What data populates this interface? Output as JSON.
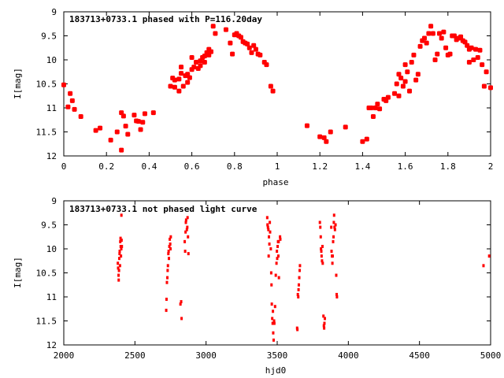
{
  "chart_data": [
    {
      "type": "scatter",
      "title": "183713+0733.1 phased with P=116.20day",
      "xlabel": "phase",
      "ylabel": "I[mag]",
      "xlim": [
        0,
        2
      ],
      "ylim": [
        9,
        12
      ],
      "y_inverted": true,
      "x_ticks": [
        0,
        0.2,
        0.4,
        0.6,
        0.8,
        1,
        1.2,
        1.4,
        1.6,
        1.8,
        2
      ],
      "x_tick_labels": [
        "0",
        "0.2",
        "0.4",
        "0.6",
        "0.8",
        "1",
        "1.2",
        "1.4",
        "1.6",
        "1.8",
        "2"
      ],
      "y_ticks": [
        9,
        9.5,
        10,
        10.5,
        11,
        11.5,
        12
      ],
      "y_tick_labels": [
        "9",
        "9.5",
        "10",
        "10.5",
        "11",
        "11.5",
        "12"
      ],
      "marker_color": "#ff0000",
      "marker_style": "large-dot",
      "points": [
        [
          0.0,
          10.52
        ],
        [
          0.02,
          10.98
        ],
        [
          0.03,
          10.7
        ],
        [
          0.04,
          10.85
        ],
        [
          0.05,
          11.03
        ],
        [
          0.08,
          11.18
        ],
        [
          0.15,
          11.47
        ],
        [
          0.17,
          11.42
        ],
        [
          0.22,
          11.67
        ],
        [
          0.25,
          11.5
        ],
        [
          0.27,
          11.88
        ],
        [
          0.27,
          11.1
        ],
        [
          0.28,
          11.17
        ],
        [
          0.29,
          11.38
        ],
        [
          0.3,
          11.55
        ],
        [
          0.33,
          11.15
        ],
        [
          0.34,
          11.27
        ],
        [
          0.35,
          11.28
        ],
        [
          0.36,
          11.45
        ],
        [
          0.37,
          11.3
        ],
        [
          0.38,
          11.12
        ],
        [
          0.42,
          11.1
        ],
        [
          0.5,
          10.55
        ],
        [
          0.51,
          10.38
        ],
        [
          0.52,
          10.42
        ],
        [
          0.52,
          10.57
        ],
        [
          0.54,
          10.4
        ],
        [
          0.54,
          10.65
        ],
        [
          0.55,
          10.28
        ],
        [
          0.55,
          10.15
        ],
        [
          0.56,
          10.55
        ],
        [
          0.57,
          10.33
        ],
        [
          0.58,
          10.3
        ],
        [
          0.58,
          10.47
        ],
        [
          0.59,
          10.37
        ],
        [
          0.6,
          9.95
        ],
        [
          0.6,
          10.2
        ],
        [
          0.61,
          10.15
        ],
        [
          0.62,
          10.05
        ],
        [
          0.63,
          10.18
        ],
        [
          0.64,
          10.02
        ],
        [
          0.64,
          10.12
        ],
        [
          0.65,
          9.95
        ],
        [
          0.66,
          10.05
        ],
        [
          0.66,
          9.92
        ],
        [
          0.67,
          9.85
        ],
        [
          0.68,
          9.9
        ],
        [
          0.68,
          9.78
        ],
        [
          0.69,
          9.83
        ],
        [
          0.7,
          9.3
        ],
        [
          0.71,
          9.45
        ],
        [
          0.76,
          9.37
        ],
        [
          0.78,
          9.65
        ],
        [
          0.79,
          9.88
        ],
        [
          0.8,
          9.48
        ],
        [
          0.81,
          9.45
        ],
        [
          0.82,
          9.5
        ],
        [
          0.83,
          9.53
        ],
        [
          0.84,
          9.62
        ],
        [
          0.85,
          9.65
        ],
        [
          0.86,
          9.67
        ],
        [
          0.87,
          9.75
        ],
        [
          0.88,
          9.85
        ],
        [
          0.89,
          9.7
        ],
        [
          0.9,
          9.78
        ],
        [
          0.91,
          9.88
        ],
        [
          0.92,
          9.9
        ],
        [
          0.94,
          10.05
        ],
        [
          0.95,
          10.1
        ],
        [
          0.97,
          10.55
        ],
        [
          0.98,
          10.65
        ],
        [
          1.14,
          11.37
        ],
        [
          1.2,
          11.6
        ],
        [
          1.22,
          11.62
        ],
        [
          1.23,
          11.7
        ],
        [
          1.25,
          11.5
        ],
        [
          1.32,
          11.4
        ],
        [
          1.4,
          11.7
        ],
        [
          1.42,
          11.65
        ],
        [
          1.43,
          11.0
        ],
        [
          1.44,
          11.0
        ],
        [
          1.45,
          11.18
        ],
        [
          1.46,
          11.0
        ],
        [
          1.47,
          10.92
        ],
        [
          1.48,
          11.02
        ],
        [
          1.5,
          10.82
        ],
        [
          1.51,
          10.85
        ],
        [
          1.52,
          10.78
        ],
        [
          1.55,
          10.7
        ],
        [
          1.56,
          10.5
        ],
        [
          1.57,
          10.75
        ],
        [
          1.57,
          10.3
        ],
        [
          1.58,
          10.38
        ],
        [
          1.59,
          10.55
        ],
        [
          1.6,
          10.45
        ],
        [
          1.6,
          10.1
        ],
        [
          1.61,
          10.25
        ],
        [
          1.62,
          10.65
        ],
        [
          1.63,
          10.05
        ],
        [
          1.64,
          9.9
        ],
        [
          1.65,
          10.42
        ],
        [
          1.66,
          10.3
        ],
        [
          1.67,
          9.72
        ],
        [
          1.68,
          9.6
        ],
        [
          1.69,
          9.55
        ],
        [
          1.7,
          9.65
        ],
        [
          1.71,
          9.45
        ],
        [
          1.72,
          9.3
        ],
        [
          1.73,
          9.45
        ],
        [
          1.74,
          10.0
        ],
        [
          1.75,
          9.88
        ],
        [
          1.76,
          9.45
        ],
        [
          1.77,
          9.55
        ],
        [
          1.78,
          9.42
        ],
        [
          1.79,
          9.75
        ],
        [
          1.8,
          9.9
        ],
        [
          1.81,
          9.88
        ],
        [
          1.82,
          9.5
        ],
        [
          1.83,
          9.5
        ],
        [
          1.84,
          9.58
        ],
        [
          1.85,
          9.55
        ],
        [
          1.86,
          9.52
        ],
        [
          1.87,
          9.6
        ],
        [
          1.88,
          9.63
        ],
        [
          1.89,
          9.7
        ],
        [
          1.9,
          9.78
        ],
        [
          1.9,
          10.05
        ],
        [
          1.91,
          9.75
        ],
        [
          1.92,
          10.0
        ],
        [
          1.93,
          9.78
        ],
        [
          1.94,
          9.95
        ],
        [
          1.95,
          9.8
        ],
        [
          1.96,
          10.1
        ],
        [
          1.97,
          10.55
        ],
        [
          1.98,
          10.25
        ],
        [
          2.0,
          10.58
        ]
      ]
    },
    {
      "type": "scatter",
      "title": "183713+0733.1 not phased light curve",
      "xlabel": "hjd0",
      "ylabel": "I[mag]",
      "xlim": [
        2000,
        5000
      ],
      "ylim": [
        9,
        12
      ],
      "y_inverted": true,
      "x_ticks": [
        2000,
        2500,
        3000,
        3500,
        4000,
        4500,
        5000
      ],
      "x_tick_labels": [
        "2000",
        "2500",
        "3000",
        "3500",
        "4000",
        "4500",
        "5000"
      ],
      "y_ticks": [
        9,
        9.5,
        10,
        10.5,
        11,
        11.5,
        12
      ],
      "y_tick_labels": [
        "9",
        "9.5",
        "10",
        "10.5",
        "11",
        "11.5",
        "12"
      ],
      "marker_color": "#ff0000",
      "marker_style": "small-dot",
      "points": [
        [
          2380,
          10.3
        ],
        [
          2382,
          10.4
        ],
        [
          2385,
          10.55
        ],
        [
          2386,
          10.65
        ],
        [
          2388,
          10.45
        ],
        [
          2390,
          10.2
        ],
        [
          2392,
          10.1
        ],
        [
          2393,
          10.05
        ],
        [
          2395,
          10.35
        ],
        [
          2397,
          9.85
        ],
        [
          2399,
          9.78
        ],
        [
          2400,
          9.95
        ],
        [
          2402,
          10.15
        ],
        [
          2404,
          10.0
        ],
        [
          2405,
          9.3
        ],
        [
          2406,
          9.82
        ],
        [
          2408,
          9.95
        ],
        [
          2720,
          11.28
        ],
        [
          2722,
          11.05
        ],
        [
          2725,
          10.7
        ],
        [
          2728,
          10.6
        ],
        [
          2730,
          10.45
        ],
        [
          2732,
          10.35
        ],
        [
          2735,
          10.1
        ],
        [
          2737,
          10.05
        ],
        [
          2739,
          10.2
        ],
        [
          2742,
          9.95
        ],
        [
          2745,
          9.8
        ],
        [
          2748,
          9.9
        ],
        [
          2750,
          10.0
        ],
        [
          2752,
          9.75
        ],
        [
          2820,
          11.15
        ],
        [
          2825,
          11.1
        ],
        [
          2828,
          11.45
        ],
        [
          2850,
          9.85
        ],
        [
          2853,
          10.05
        ],
        [
          2856,
          9.65
        ],
        [
          2858,
          9.45
        ],
        [
          2860,
          9.4
        ],
        [
          2865,
          9.6
        ],
        [
          2868,
          9.55
        ],
        [
          2870,
          9.35
        ],
        [
          2873,
          9.75
        ],
        [
          2876,
          10.1
        ],
        [
          3430,
          9.35
        ],
        [
          3432,
          9.5
        ],
        [
          3435,
          9.55
        ],
        [
          3438,
          9.6
        ],
        [
          3440,
          10.15
        ],
        [
          3442,
          9.75
        ],
        [
          3445,
          9.9
        ],
        [
          3448,
          9.45
        ],
        [
          3450,
          9.65
        ],
        [
          3455,
          10.0
        ],
        [
          3458,
          10.5
        ],
        [
          3460,
          10.75
        ],
        [
          3462,
          11.15
        ],
        [
          3465,
          11.45
        ],
        [
          3468,
          11.55
        ],
        [
          3470,
          11.3
        ],
        [
          3472,
          11.75
        ],
        [
          3475,
          11.9
        ],
        [
          3478,
          11.5
        ],
        [
          3480,
          11.55
        ],
        [
          3485,
          11.2
        ],
        [
          3490,
          10.55
        ],
        [
          3495,
          10.3
        ],
        [
          3498,
          10.05
        ],
        [
          3500,
          10.2
        ],
        [
          3503,
          9.95
        ],
        [
          3506,
          9.85
        ],
        [
          3508,
          10.15
        ],
        [
          3510,
          9.85
        ],
        [
          3512,
          10.6
        ],
        [
          3520,
          9.75
        ],
        [
          3522,
          9.8
        ],
        [
          3640,
          11.65
        ],
        [
          3642,
          11.68
        ],
        [
          3645,
          10.95
        ],
        [
          3648,
          11.0
        ],
        [
          3650,
          10.85
        ],
        [
          3652,
          10.75
        ],
        [
          3655,
          10.6
        ],
        [
          3658,
          10.45
        ],
        [
          3660,
          10.35
        ],
        [
          3800,
          9.45
        ],
        [
          3803,
          9.55
        ],
        [
          3806,
          9.75
        ],
        [
          3808,
          10.0
        ],
        [
          3810,
          10.05
        ],
        [
          3812,
          10.15
        ],
        [
          3815,
          10.25
        ],
        [
          3818,
          9.95
        ],
        [
          3820,
          10.3
        ],
        [
          3825,
          11.4
        ],
        [
          3828,
          11.6
        ],
        [
          3830,
          11.65
        ],
        [
          3832,
          11.55
        ],
        [
          3835,
          11.45
        ],
        [
          3880,
          9.55
        ],
        [
          3882,
          10.05
        ],
        [
          3885,
          10.15
        ],
        [
          3888,
          10.3
        ],
        [
          3890,
          10.15
        ],
        [
          3893,
          9.85
        ],
        [
          3896,
          9.75
        ],
        [
          3898,
          9.45
        ],
        [
          3900,
          9.3
        ],
        [
          3903,
          9.55
        ],
        [
          3906,
          9.6
        ],
        [
          3910,
          9.5
        ],
        [
          3915,
          10.55
        ],
        [
          3918,
          10.95
        ],
        [
          3920,
          11.0
        ],
        [
          4950,
          10.35
        ],
        [
          4990,
          10.15
        ]
      ]
    }
  ]
}
